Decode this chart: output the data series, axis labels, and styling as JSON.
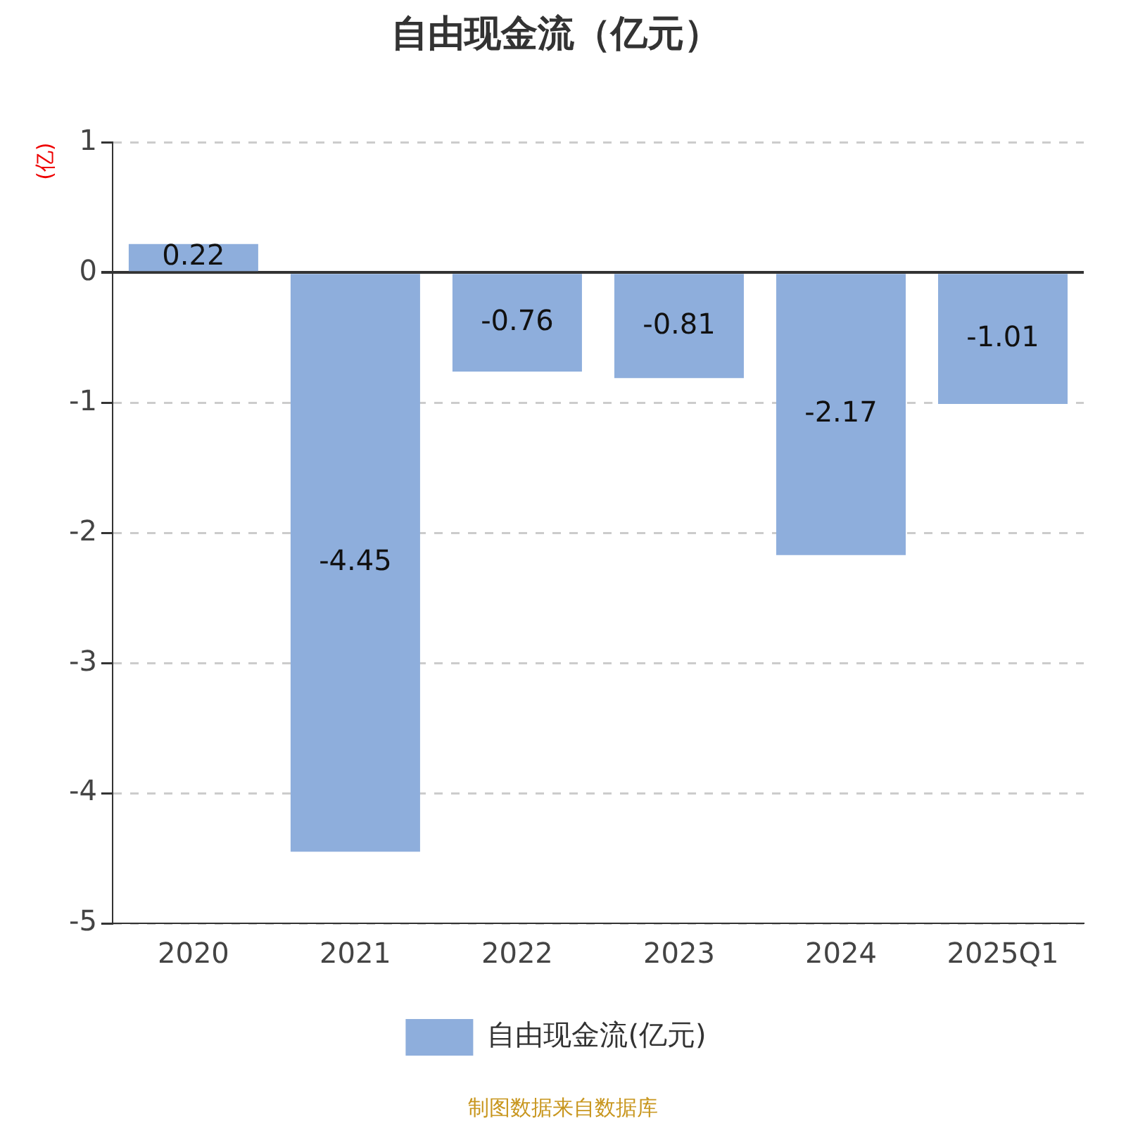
{
  "chart_data": {
    "type": "bar",
    "title": "自由现金流（亿元）",
    "ylabel": "(亿)",
    "categories": [
      "2020",
      "2021",
      "2022",
      "2023",
      "2024",
      "2025Q1"
    ],
    "series": [
      {
        "name": "自由现金流(亿元)",
        "color": "#8eaedc",
        "values": [
          0.22,
          -4.45,
          -0.76,
          -0.81,
          -2.17,
          -1.01
        ]
      }
    ],
    "ylim": [
      -5,
      1
    ],
    "yticks": [
      -5,
      -4,
      -3,
      -2,
      -1,
      0,
      1
    ],
    "grid": "y",
    "legend": "bottom",
    "data_labels": true,
    "annotations": [
      "制图数据来自数据库"
    ]
  }
}
